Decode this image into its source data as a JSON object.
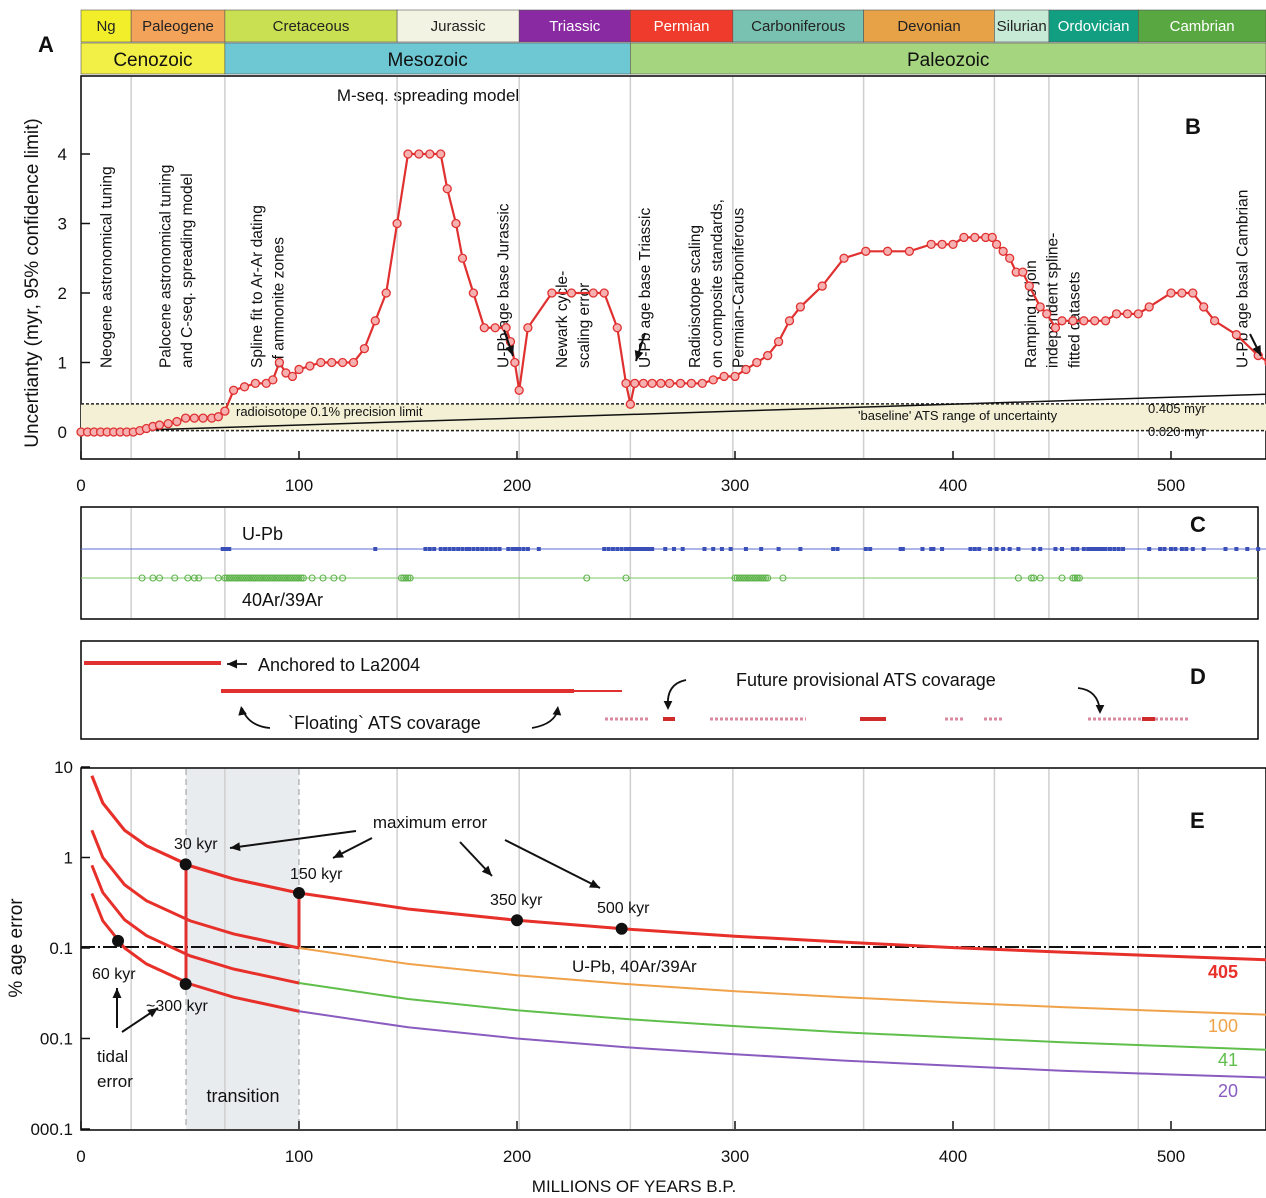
{
  "panel_letters": {
    "a": "A",
    "b": "B",
    "c": "C",
    "d": "D",
    "e": "E"
  },
  "periods": [
    {
      "name": "Ng",
      "start": 0,
      "end": 23,
      "color": "#f2ef2a",
      "text_color": "#222222"
    },
    {
      "name": "Paleogene",
      "start": 23,
      "end": 66,
      "color": "#f4a35b",
      "text_color": "#222222"
    },
    {
      "name": "Cretaceous",
      "start": 66,
      "end": 145,
      "color": "#c8e052",
      "text_color": "#222222"
    },
    {
      "name": "Jurassic",
      "start": 145,
      "end": 201,
      "color": "#f3f3e4",
      "text_color": "#222222"
    },
    {
      "name": "Triassic",
      "start": 201,
      "end": 252,
      "color": "#8a2aa2",
      "text_color": "#ffffff"
    },
    {
      "name": "Permian",
      "start": 252,
      "end": 299,
      "color": "#ef3b2c",
      "text_color": "#ffffff"
    },
    {
      "name": "Carboniferous",
      "start": 299,
      "end": 359,
      "color": "#79c1b0",
      "text_color": "#222222"
    },
    {
      "name": "Devonian",
      "start": 359,
      "end": 419,
      "color": "#e7a146",
      "text_color": "#222222"
    },
    {
      "name": "Silurian",
      "start": 419,
      "end": 444,
      "color": "#c7ead6",
      "text_color": "#222222"
    },
    {
      "name": "Ordovician",
      "start": 444,
      "end": 485,
      "color": "#129e80",
      "text_color": "#ffffff"
    },
    {
      "name": "Cambrian",
      "start": 485,
      "end": 545,
      "color": "#58a740",
      "text_color": "#ffffff"
    }
  ],
  "eras": [
    {
      "name": "Cenozoic",
      "start": 0,
      "end": 66,
      "color": "#f2ef46"
    },
    {
      "name": "Mesozoic",
      "start": 66,
      "end": 252,
      "color": "#6dc8d4"
    },
    {
      "name": "Paleozoic",
      "start": 252,
      "end": 545,
      "color": "#a6d580"
    }
  ],
  "panel_b": {
    "ylabel": "Uncertianty (myr, 95% confidence limit)",
    "model_label": "M-seq. spreading model",
    "annotations": [
      {
        "text": "Neogene astronomical tuning",
        "x": 14
      },
      {
        "text": "Palocene astronomical tuning",
        "x": 41
      },
      {
        "text": "and C-seq. spreading model",
        "x": 51
      },
      {
        "text": "Spline fit to Ar-Ar dating",
        "x": 83
      },
      {
        "text": "of ammonite zones",
        "x": 93
      },
      {
        "text": "U-Pb age base Jurassic",
        "x": 196
      },
      {
        "text": "Newark cycle-",
        "x": 223
      },
      {
        "text": "scaling error",
        "x": 233
      },
      {
        "text": "U-Pb age base Triassic",
        "x": 261
      },
      {
        "text": "Radioisotope scaling",
        "x": 284
      },
      {
        "text": "on composite standards,",
        "x": 294
      },
      {
        "text": "Permian-Carboniferous",
        "x": 304
      },
      {
        "text": "Ramping to join",
        "x": 438
      },
      {
        "text": "independent spline-",
        "x": 448
      },
      {
        "text": "fitted datasets",
        "x": 458
      },
      {
        "text": "U-Pb age basal Cambrian",
        "x": 535
      }
    ],
    "precision_label": "radioisotope 0.1% precision limit",
    "baseline_label": "'baseline' ATS range of uncertainty",
    "upper_label": "0.405 myr",
    "lower_label": "0.020 myr"
  },
  "panel_c": {
    "upb_label": "U-Pb",
    "arar_label": "40Ar/39Ar",
    "upb_color": "#3a4fb8",
    "arar_color": "#5db34a"
  },
  "panel_d": {
    "anchored_label": "Anchored to La2004",
    "floating_label": "`Floating` ATS covarage",
    "future_label": "Future provisional ATS covarage"
  },
  "panel_e": {
    "ylabel": "% age error",
    "ytick_labels": [
      "10",
      "1",
      "0.1",
      "00.1",
      "000.1"
    ],
    "max_error_label": "maximum error",
    "upb_line_label": "U-Pb, 40Ar/39Ar",
    "transition_label": "transition",
    "tidal_label_1": "tidal",
    "tidal_label_2": "error",
    "points": [
      {
        "label": "60 kyr"
      },
      {
        "label": "~300 kyr"
      },
      {
        "label": "30 kyr"
      },
      {
        "label": "150 kyr"
      },
      {
        "label": "350 kyr"
      },
      {
        "label": "500 kyr"
      }
    ]
  },
  "xlabel": "MILLIONS OF YEARS B.P.",
  "chart_data": [
    {
      "type": "line",
      "title": "",
      "subtitle": "M-seq. spreading model",
      "xlabel": "",
      "ylabel": "Uncertianty (myr, 95% confidence limit)",
      "xlim": [
        0,
        545
      ],
      "ylim": [
        -0.4,
        5.1
      ],
      "xticks": [
        0,
        100,
        200,
        300,
        400,
        500
      ],
      "yticks": [
        0,
        1,
        2,
        3,
        4
      ],
      "grid": false,
      "color": "#e03030",
      "x": [
        0,
        3,
        6,
        9,
        12,
        15,
        18,
        21,
        24,
        27,
        30,
        33,
        36,
        40,
        44,
        48,
        52,
        56,
        60,
        63,
        66,
        70,
        75,
        80,
        85,
        88,
        91,
        94,
        97,
        100,
        105,
        110,
        115,
        120,
        125,
        130,
        135,
        140,
        145,
        150,
        155,
        160,
        165,
        168,
        172,
        175,
        180,
        185,
        190,
        195,
        197,
        199,
        201,
        205,
        216,
        225,
        235,
        240,
        246,
        250,
        252,
        254,
        258,
        262,
        266,
        270,
        275,
        280,
        285,
        290,
        295,
        300,
        305,
        310,
        315,
        320,
        325,
        330,
        340,
        350,
        360,
        370,
        380,
        390,
        395,
        400,
        405,
        410,
        415,
        418,
        420,
        423,
        426,
        429,
        432,
        435,
        440,
        443,
        447,
        450,
        455,
        460,
        465,
        470,
        475,
        480,
        485,
        490,
        500,
        505,
        510,
        515,
        520,
        530,
        540,
        545
      ],
      "y": [
        0,
        0,
        0,
        0,
        0,
        0,
        0,
        0,
        0,
        0.02,
        0.05,
        0.08,
        0.1,
        0.12,
        0.15,
        0.2,
        0.2,
        0.2,
        0.2,
        0.22,
        0.3,
        0.6,
        0.65,
        0.7,
        0.7,
        0.75,
        1.0,
        0.85,
        0.8,
        0.9,
        0.95,
        1.0,
        1.0,
        1.0,
        1.0,
        1.2,
        1.6,
        2.0,
        3.0,
        4.0,
        4.0,
        4.0,
        4.0,
        3.5,
        3.0,
        2.5,
        2.0,
        1.5,
        1.5,
        1.5,
        1.3,
        1.0,
        0.6,
        1.5,
        2.0,
        2.0,
        2.0,
        2.0,
        1.5,
        0.7,
        0.4,
        0.7,
        0.7,
        0.7,
        0.7,
        0.7,
        0.7,
        0.7,
        0.7,
        0.75,
        0.8,
        0.8,
        0.9,
        1.0,
        1.1,
        1.3,
        1.6,
        1.8,
        2.1,
        2.5,
        2.6,
        2.6,
        2.6,
        2.7,
        2.7,
        2.7,
        2.8,
        2.8,
        2.8,
        2.8,
        2.7,
        2.6,
        2.5,
        2.3,
        2.3,
        2.1,
        1.8,
        1.7,
        1.5,
        1.6,
        1.6,
        1.6,
        1.6,
        1.6,
        1.7,
        1.7,
        1.7,
        1.8,
        2.0,
        2.0,
        2.0,
        1.8,
        1.6,
        1.4,
        1.1,
        1.0
      ]
    },
    {
      "type": "scatter",
      "title": "",
      "xlim": [
        0,
        545
      ],
      "series": [
        {
          "name": "U-Pb",
          "values": [
            65,
            66,
            67,
            68,
            135,
            158,
            160,
            162,
            165,
            167,
            169,
            171,
            173,
            175,
            177,
            178,
            180,
            182,
            184,
            186,
            188,
            190,
            192,
            196,
            198,
            199,
            200,
            201,
            203,
            205,
            210,
            240,
            242,
            244,
            246,
            248,
            250,
            251,
            252,
            253,
            254,
            255,
            256,
            257,
            258,
            259,
            260,
            261,
            262,
            268,
            272,
            276,
            286,
            290,
            294,
            298,
            305,
            312,
            320,
            330,
            345,
            347,
            360,
            362,
            376,
            377,
            386,
            390,
            391,
            395,
            408,
            410,
            412,
            417,
            420,
            423,
            426,
            430,
            437,
            440,
            447,
            450,
            455,
            457,
            460,
            462,
            463,
            464,
            465,
            466,
            467,
            468,
            469,
            470,
            472,
            474,
            476,
            478,
            490,
            495,
            497,
            500,
            502,
            505,
            507,
            510,
            515,
            525,
            530,
            535,
            540,
            545
          ]
        },
        {
          "name": "40Ar/39Ar",
          "values": [
            28,
            33,
            36,
            43,
            49,
            52,
            54,
            63,
            66,
            67,
            68,
            69,
            70,
            71,
            72,
            73,
            74,
            75,
            76,
            77,
            78,
            79,
            80,
            81,
            82,
            83,
            84,
            85,
            86,
            87,
            88,
            89,
            90,
            91,
            92,
            93,
            94,
            95,
            96,
            97,
            98,
            99,
            100,
            101,
            102,
            106,
            111,
            116,
            120,
            147,
            148,
            149,
            150,
            151,
            232,
            250,
            300,
            301,
            302,
            303,
            304,
            305,
            306,
            307,
            308,
            309,
            310,
            311,
            312,
            313,
            314,
            315,
            322,
            430,
            436,
            437,
            440,
            450,
            455,
            456,
            457,
            458
          ]
        }
      ]
    },
    {
      "type": "line",
      "title": "",
      "xlabel": "MILLIONS OF YEARS B.P.",
      "ylabel": "% age error",
      "xlim": [
        0,
        545
      ],
      "ylim": [
        0.001,
        10
      ],
      "log_y": true,
      "xticks": [
        0,
        100,
        200,
        300,
        400,
        500
      ],
      "series": [
        {
          "name": "405",
          "x": [
            5,
            10,
            20,
            30,
            50,
            70,
            100,
            150,
            200,
            250,
            300,
            350,
            400,
            450,
            500,
            545
          ],
          "values": [
            8.0,
            4.0,
            2.0,
            1.35,
            0.81,
            0.58,
            0.405,
            0.27,
            0.2025,
            0.162,
            0.135,
            0.116,
            0.101,
            0.09,
            0.081,
            0.074
          ],
          "color": "#e8302a"
        },
        {
          "name": "100",
          "x": [
            5,
            10,
            20,
            30,
            50,
            70,
            100,
            150,
            200,
            250,
            300,
            350,
            400,
            450,
            500,
            545
          ],
          "values": [
            2.0,
            1.0,
            0.5,
            0.333,
            0.2,
            0.143,
            0.1,
            0.0667,
            0.05,
            0.04,
            0.0333,
            0.0286,
            0.025,
            0.0222,
            0.02,
            0.0183
          ],
          "color": "#f0a24a"
        },
        {
          "name": "41",
          "x": [
            5,
            10,
            20,
            30,
            50,
            70,
            100,
            150,
            200,
            250,
            300,
            350,
            400,
            450,
            500,
            545
          ],
          "values": [
            0.82,
            0.41,
            0.205,
            0.137,
            0.082,
            0.0586,
            0.041,
            0.0273,
            0.0205,
            0.0164,
            0.0137,
            0.0117,
            0.0103,
            0.0091,
            0.0082,
            0.0075
          ],
          "color": "#5fbf4a"
        },
        {
          "name": "20",
          "x": [
            5,
            10,
            20,
            30,
            50,
            70,
            100,
            150,
            200,
            250,
            300,
            350,
            400,
            450,
            500,
            545
          ],
          "values": [
            0.4,
            0.2,
            0.1,
            0.0667,
            0.04,
            0.0286,
            0.02,
            0.0133,
            0.01,
            0.008,
            0.0067,
            0.0057,
            0.005,
            0.0044,
            0.004,
            0.0037
          ],
          "color": "#8a5cc0"
        }
      ],
      "reference_line": {
        "label": "U-Pb, 40Ar/39Ar",
        "y": 0.1
      },
      "labeled_points": [
        {
          "label": "60 kyr",
          "x": 17,
          "y": 0.12
        },
        {
          "label": "~300 kyr",
          "x": 48,
          "y": 0.04
        },
        {
          "label": "30 kyr",
          "x": 48,
          "y": 0.84
        },
        {
          "label": "150 kyr",
          "x": 100,
          "y": 0.405
        },
        {
          "label": "350 kyr",
          "x": 200,
          "y": 0.2025
        },
        {
          "label": "500 kyr",
          "x": 248,
          "y": 0.163
        }
      ],
      "transition_range": [
        48,
        100
      ]
    }
  ]
}
